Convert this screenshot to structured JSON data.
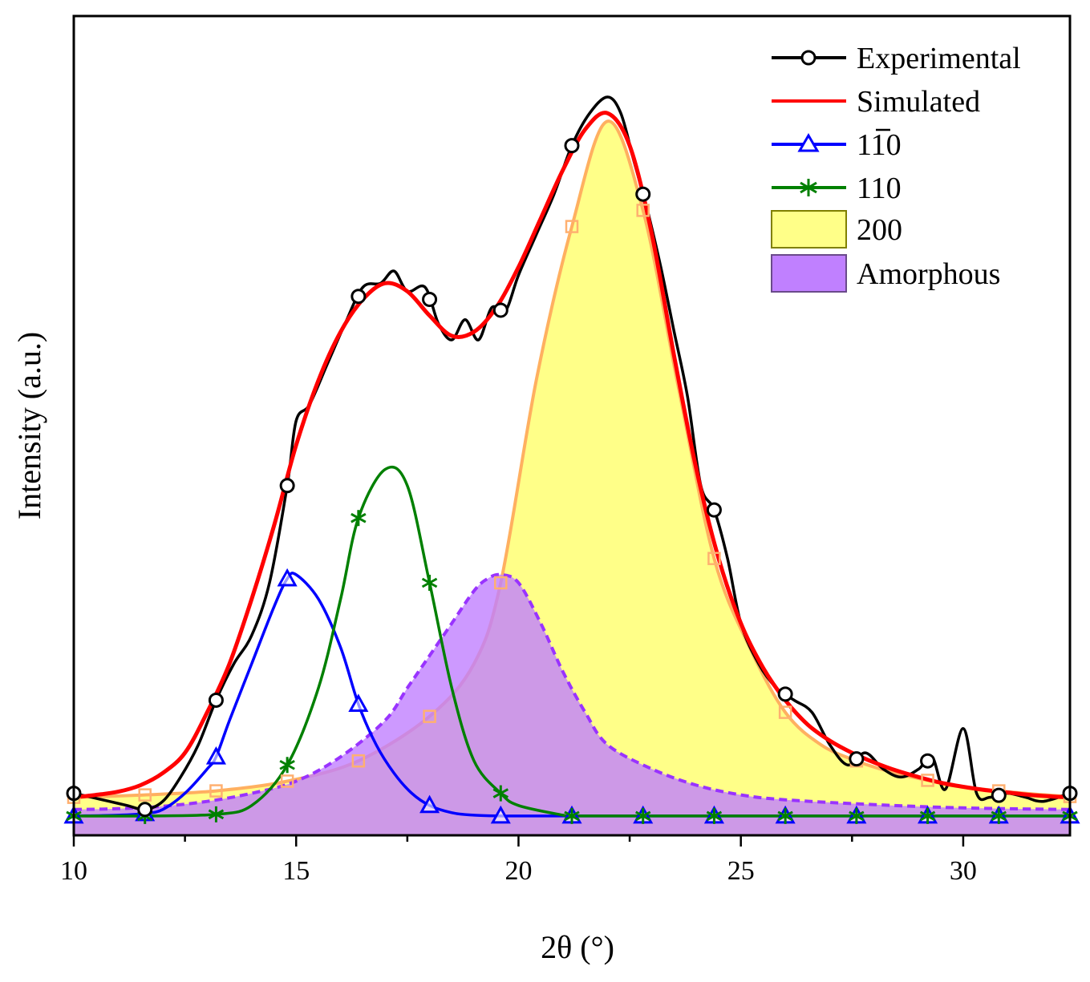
{
  "chart_data": {
    "type": "line",
    "title": "",
    "xlabel": "2θ (°)",
    "ylabel": "Intensity (a.u.)",
    "xlim": [
      10,
      32.4
    ],
    "ylim": [
      0,
      1.0
    ],
    "x_ticks": [
      10,
      15,
      20,
      25,
      30
    ],
    "x_tick_labels": [
      "10",
      "15",
      "20",
      "25",
      "30"
    ],
    "y_ticks": [],
    "legend_position": "top-right",
    "series": [
      {
        "name": "Experimental",
        "label": "Experimental",
        "color": "#000000",
        "marker": "open-circle",
        "x": [
          10,
          10.4,
          10.8,
          11.2,
          11.6,
          12.0,
          12.4,
          12.8,
          13.2,
          13.6,
          14.0,
          14.4,
          14.8,
          15.0,
          15.3,
          15.7,
          16.1,
          16.5,
          16.9,
          17.2,
          17.5,
          17.9,
          18.2,
          18.5,
          18.8,
          19.1,
          19.4,
          19.7,
          20.0,
          20.4,
          20.8,
          21.2,
          21.6,
          22.0,
          22.3,
          22.6,
          22.9,
          23.2,
          23.5,
          23.8,
          24.1,
          24.4,
          24.7,
          25.0,
          25.4,
          25.8,
          26.2,
          26.6,
          27.0,
          27.4,
          27.8,
          28.2,
          28.6,
          29.0,
          29.3,
          29.6,
          30.0,
          30.3,
          30.6,
          31.0,
          31.4,
          31.8,
          32.4
        ],
        "y": [
          0.04,
          0.035,
          0.03,
          0.025,
          0.02,
          0.03,
          0.06,
          0.1,
          0.155,
          0.2,
          0.235,
          0.3,
          0.42,
          0.5,
          0.52,
          0.57,
          0.62,
          0.665,
          0.67,
          0.685,
          0.66,
          0.665,
          0.62,
          0.6,
          0.625,
          0.6,
          0.64,
          0.635,
          0.68,
          0.73,
          0.78,
          0.84,
          0.88,
          0.9,
          0.88,
          0.82,
          0.76,
          0.69,
          0.61,
          0.53,
          0.42,
          0.39,
          0.33,
          0.25,
          0.2,
          0.17,
          0.155,
          0.14,
          0.1,
          0.075,
          0.09,
          0.07,
          0.06,
          0.07,
          0.085,
          0.045,
          0.12,
          0.04,
          0.035,
          0.04,
          0.035,
          0.03,
          0.04
        ]
      },
      {
        "name": "Simulated",
        "label": "Simulated",
        "color": "#ff0000",
        "marker": "none",
        "x": [
          10,
          10.5,
          11.0,
          11.5,
          12.0,
          12.5,
          13.0,
          13.5,
          14.0,
          14.5,
          15.0,
          15.5,
          16.0,
          16.5,
          17.0,
          17.5,
          18.0,
          18.5,
          19.0,
          19.5,
          20.0,
          20.5,
          21.0,
          21.5,
          22.0,
          22.5,
          23.0,
          23.5,
          24.0,
          24.5,
          25.0,
          25.5,
          26.0,
          26.5,
          27.0,
          27.5,
          28.0,
          28.5,
          29.0,
          29.5,
          30.0,
          30.5,
          31.0,
          31.5,
          32.0,
          32.4
        ],
        "y": [
          0.035,
          0.038,
          0.042,
          0.05,
          0.065,
          0.09,
          0.14,
          0.2,
          0.28,
          0.37,
          0.47,
          0.55,
          0.61,
          0.65,
          0.67,
          0.66,
          0.63,
          0.605,
          0.61,
          0.64,
          0.69,
          0.75,
          0.81,
          0.86,
          0.88,
          0.84,
          0.73,
          0.58,
          0.44,
          0.33,
          0.25,
          0.195,
          0.155,
          0.125,
          0.105,
          0.09,
          0.078,
          0.068,
          0.06,
          0.053,
          0.048,
          0.044,
          0.041,
          0.038,
          0.036,
          0.035
        ]
      },
      {
        "name": "1-10",
        "label": "110",
        "color": "#0000ff",
        "marker": "open-triangle",
        "x": [
          10,
          11,
          11.6,
          12,
          12.5,
          13,
          13.2,
          13.5,
          14,
          14.5,
          14.8,
          15,
          15.5,
          16,
          16.4,
          16.8,
          17.2,
          17.6,
          18,
          18.5,
          19,
          19.6,
          20,
          21,
          22,
          24,
          26,
          28,
          30,
          32.4
        ],
        "y": [
          0.012,
          0.013,
          0.015,
          0.02,
          0.04,
          0.07,
          0.085,
          0.13,
          0.2,
          0.27,
          0.305,
          0.31,
          0.28,
          0.22,
          0.15,
          0.1,
          0.065,
          0.04,
          0.025,
          0.016,
          0.013,
          0.012,
          0.012,
          0.012,
          0.012,
          0.012,
          0.012,
          0.012,
          0.012,
          0.012
        ]
      },
      {
        "name": "110",
        "label": "110",
        "color": "#008000",
        "marker": "asterisk",
        "x": [
          10,
          11.6,
          13.2,
          14,
          14.8,
          15.5,
          16,
          16.4,
          17,
          17.5,
          18,
          18.5,
          19,
          19.6,
          20,
          21,
          21.2,
          22.8,
          24.4,
          26,
          27.6,
          29.2,
          30.8,
          32.4
        ],
        "y": [
          0.012,
          0.012,
          0.014,
          0.025,
          0.075,
          0.17,
          0.28,
          0.38,
          0.44,
          0.42,
          0.3,
          0.17,
          0.08,
          0.04,
          0.025,
          0.013,
          0.012,
          0.012,
          0.012,
          0.012,
          0.012,
          0.012,
          0.012,
          0.012
        ]
      },
      {
        "name": "200",
        "label": "200",
        "color": "#ffff88",
        "edge_color": "#ffb060",
        "marker": "open-square",
        "x": [
          10,
          11.6,
          13.2,
          14.8,
          16.4,
          18.0,
          19.0,
          19.6,
          20.4,
          21.2,
          22.0,
          22.8,
          23.6,
          24.4,
          25.2,
          26.0,
          26.8,
          27.6,
          28.4,
          29.2,
          30.0,
          30.8,
          31.6,
          32.4
        ],
        "y": [
          0.035,
          0.038,
          0.043,
          0.055,
          0.08,
          0.135,
          0.2,
          0.3,
          0.55,
          0.74,
          0.87,
          0.76,
          0.54,
          0.33,
          0.22,
          0.14,
          0.1,
          0.08,
          0.066,
          0.056,
          0.048,
          0.043,
          0.039,
          0.036
        ]
      },
      {
        "name": "Amorphous",
        "label": "Amorphous",
        "color": "#c080ff",
        "edge_color": "#9933ff",
        "marker": "none",
        "x": [
          10,
          11,
          12,
          13,
          14,
          15,
          16,
          17,
          17.5,
          18,
          18.5,
          19,
          19.3,
          19.6,
          20,
          20.5,
          21,
          21.5,
          22,
          23,
          24,
          25,
          26,
          28,
          30,
          32.4
        ],
        "y": [
          0.02,
          0.021,
          0.024,
          0.03,
          0.04,
          0.055,
          0.085,
          0.13,
          0.17,
          0.21,
          0.25,
          0.29,
          0.305,
          0.31,
          0.3,
          0.25,
          0.19,
          0.14,
          0.1,
          0.07,
          0.05,
          0.038,
          0.032,
          0.026,
          0.022,
          0.02
        ]
      }
    ]
  }
}
